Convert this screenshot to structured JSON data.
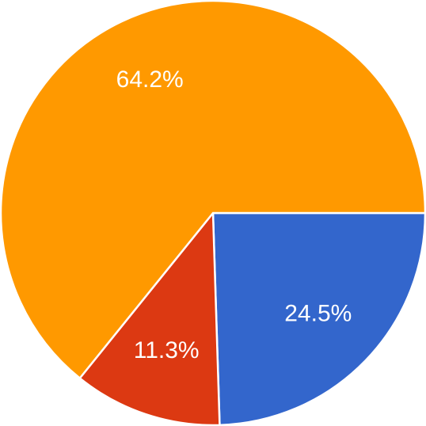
{
  "chart_data": {
    "type": "pie",
    "values": [
      24.5,
      11.3,
      64.2
    ],
    "value_labels": [
      "24.5%",
      "11.3%",
      "64.2%"
    ],
    "colors": [
      "#3366cc",
      "#dc3912",
      "#ff9900"
    ]
  }
}
